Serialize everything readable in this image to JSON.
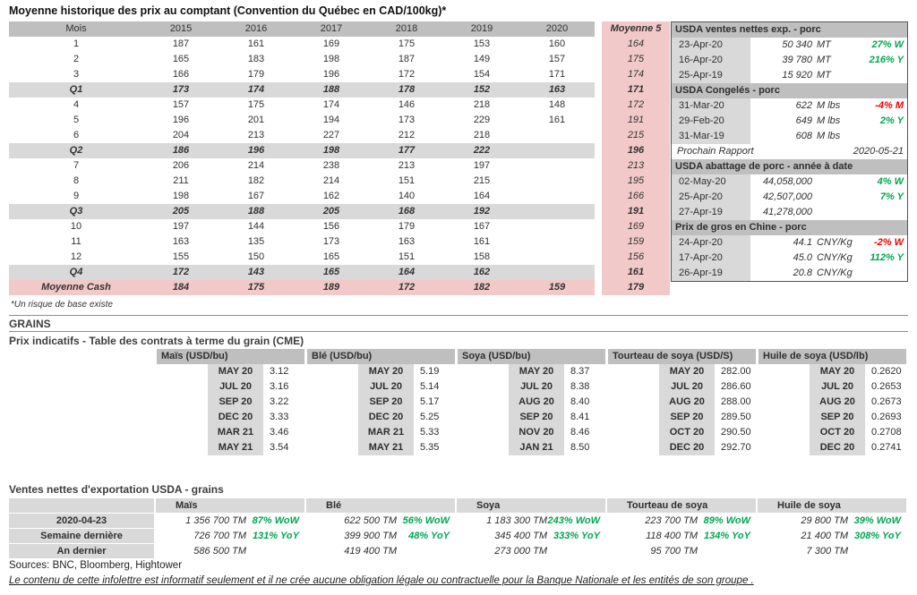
{
  "page": {
    "title": "Moyenne historique des prix au comptant (Convention du Québec en CAD/100kg)*",
    "footnote": "*Un risque de base existe",
    "sources": "Sources: BNC, Bloomberg, Hightower",
    "disclaimer": "Le contenu de cette infolettre est informatif seulement et il ne crée aucune obligation légale ou contractuelle pour la Banque Nationale et les entités de son groupe ."
  },
  "colors": {
    "header_gray": "#bfbfbf",
    "light_gray": "#d9d9d9",
    "pink": "#f2c9c9",
    "green": "#00a651",
    "red": "#ee0000"
  },
  "price_table": {
    "headers": [
      "Mois",
      "2015",
      "2016",
      "2017",
      "2018",
      "2019",
      "2020",
      "Moyenne 5"
    ],
    "rows": [
      {
        "label": "1",
        "type": "normal",
        "values": [
          "187",
          "161",
          "169",
          "175",
          "153",
          "160"
        ],
        "moyenne": "164"
      },
      {
        "label": "2",
        "type": "normal",
        "values": [
          "165",
          "183",
          "198",
          "187",
          "149",
          "157"
        ],
        "moyenne": "175"
      },
      {
        "label": "3",
        "type": "normal",
        "values": [
          "166",
          "179",
          "196",
          "172",
          "154",
          "171"
        ],
        "moyenne": "174"
      },
      {
        "label": "Q1",
        "type": "quarter",
        "values": [
          "173",
          "174",
          "188",
          "178",
          "152",
          "163"
        ],
        "moyenne": "171"
      },
      {
        "label": "4",
        "type": "normal",
        "values": [
          "157",
          "175",
          "174",
          "146",
          "218",
          "148"
        ],
        "moyenne": "172"
      },
      {
        "label": "5",
        "type": "normal",
        "values": [
          "196",
          "201",
          "194",
          "173",
          "229",
          "161"
        ],
        "moyenne": "191"
      },
      {
        "label": "6",
        "type": "normal",
        "values": [
          "204",
          "213",
          "227",
          "212",
          "218",
          ""
        ],
        "moyenne": "215"
      },
      {
        "label": "Q2",
        "type": "quarter",
        "values": [
          "186",
          "196",
          "198",
          "177",
          "222",
          ""
        ],
        "moyenne": "196"
      },
      {
        "label": "7",
        "type": "normal",
        "values": [
          "206",
          "214",
          "238",
          "213",
          "197",
          ""
        ],
        "moyenne": "213"
      },
      {
        "label": "8",
        "type": "normal",
        "values": [
          "211",
          "182",
          "214",
          "151",
          "215",
          ""
        ],
        "moyenne": "195"
      },
      {
        "label": "9",
        "type": "normal",
        "values": [
          "198",
          "167",
          "162",
          "140",
          "164",
          ""
        ],
        "moyenne": "166"
      },
      {
        "label": "Q3",
        "type": "quarter",
        "values": [
          "205",
          "188",
          "205",
          "168",
          "192",
          ""
        ],
        "moyenne": "191"
      },
      {
        "label": "10",
        "type": "normal",
        "values": [
          "197",
          "144",
          "156",
          "179",
          "167",
          ""
        ],
        "moyenne": "169"
      },
      {
        "label": "11",
        "type": "normal",
        "values": [
          "163",
          "135",
          "173",
          "163",
          "161",
          ""
        ],
        "moyenne": "159"
      },
      {
        "label": "12",
        "type": "normal",
        "values": [
          "155",
          "150",
          "165",
          "151",
          "158",
          ""
        ],
        "moyenne": "156"
      },
      {
        "label": "Q4",
        "type": "quarter",
        "values": [
          "172",
          "143",
          "165",
          "164",
          "162",
          ""
        ],
        "moyenne": "161"
      },
      {
        "label": "Moyenne Cash",
        "type": "cash",
        "values": [
          "184",
          "175",
          "189",
          "172",
          "182",
          "159"
        ],
        "moyenne": "179"
      }
    ]
  },
  "usda_panel": {
    "blocks": [
      {
        "type": "header",
        "text": "USDA ventes nettes exp. - porc"
      },
      {
        "type": "row",
        "date": "23-Apr-20",
        "value": "50 340",
        "unit": "MT",
        "change": "27% W",
        "trend": "up"
      },
      {
        "type": "row",
        "date": "16-Apr-20",
        "value": "39 780",
        "unit": "MT",
        "change": "216% Y",
        "trend": "up"
      },
      {
        "type": "row",
        "date": "25-Apr-19",
        "value": "15 920",
        "unit": "MT",
        "change": "",
        "trend": ""
      },
      {
        "type": "header",
        "text": "USDA Congelés - porc"
      },
      {
        "type": "row",
        "date": "31-Mar-20",
        "value": "622",
        "unit": "M lbs",
        "change": "-4% M",
        "trend": "down"
      },
      {
        "type": "row",
        "date": "29-Feb-20",
        "value": "649",
        "unit": "M lbs",
        "change": "2% Y",
        "trend": "up"
      },
      {
        "type": "row",
        "date": "31-Mar-19",
        "value": "608",
        "unit": "M lbs",
        "change": "",
        "trend": ""
      },
      {
        "type": "note",
        "label": "Prochain Rapport",
        "value": "2020-05-21"
      },
      {
        "type": "header",
        "text": "USDA abattage de porc - année à date"
      },
      {
        "type": "row",
        "date": "02-May-20",
        "value": "44,058,000",
        "unit": "",
        "change": "4% W",
        "trend": "up"
      },
      {
        "type": "row",
        "date": "25-Apr-20",
        "value": "42,507,000",
        "unit": "",
        "change": "7% Y",
        "trend": "up"
      },
      {
        "type": "row",
        "date": "27-Apr-19",
        "value": "41,278,000",
        "unit": "",
        "change": "",
        "trend": ""
      },
      {
        "type": "header",
        "text": "Prix de gros en Chine - porc"
      },
      {
        "type": "row",
        "date": "24-Apr-20",
        "value": "44.1",
        "unit": "CNY/Kg",
        "change": "-2% W",
        "trend": "down"
      },
      {
        "type": "row",
        "date": "17-Apr-20",
        "value": "45.0",
        "unit": "CNY/Kg",
        "change": "112% Y",
        "trend": "up"
      },
      {
        "type": "row",
        "date": "26-Apr-19",
        "value": "20.8",
        "unit": "CNY/Kg",
        "change": "",
        "trend": ""
      }
    ]
  },
  "grains": {
    "heading": "GRAINS",
    "subheading": "Prix indicatifs - Table des contrats à terme du grain (CME)",
    "futures": [
      {
        "title": "Maïs (USD/bu)",
        "rows": [
          [
            "MAY 20",
            "3.12"
          ],
          [
            "JUL 20",
            "3.16"
          ],
          [
            "SEP 20",
            "3.22"
          ],
          [
            "DEC 20",
            "3.33"
          ],
          [
            "MAR 21",
            "3.46"
          ],
          [
            "MAY 21",
            "3.54"
          ]
        ]
      },
      {
        "title": "Blé (USD/bu)",
        "rows": [
          [
            "MAY 20",
            "5.19"
          ],
          [
            "JUL 20",
            "5.14"
          ],
          [
            "SEP 20",
            "5.17"
          ],
          [
            "DEC 20",
            "5.25"
          ],
          [
            "MAR 21",
            "5.33"
          ],
          [
            "MAY 21",
            "5.35"
          ]
        ]
      },
      {
        "title": "Soya (USD/bu)",
        "rows": [
          [
            "MAY 20",
            "8.37"
          ],
          [
            "JUL 20",
            "8.38"
          ],
          [
            "AUG 20",
            "8.40"
          ],
          [
            "SEP 20",
            "8.41"
          ],
          [
            "NOV 20",
            "8.46"
          ],
          [
            "JAN 21",
            "8.50"
          ]
        ]
      },
      {
        "title": "Tourteau de soya (USD/S)",
        "rows": [
          [
            "MAY 20",
            "282.00"
          ],
          [
            "JUL 20",
            "286.60"
          ],
          [
            "AUG 20",
            "288.00"
          ],
          [
            "SEP 20",
            "289.50"
          ],
          [
            "OCT 20",
            "290.50"
          ],
          [
            "DEC 20",
            "292.70"
          ]
        ]
      },
      {
        "title": "Huile de soya (USD/lb)",
        "rows": [
          [
            "MAY 20",
            "0.2620"
          ],
          [
            "JUL 20",
            "0.2653"
          ],
          [
            "AUG 20",
            "0.2673"
          ],
          [
            "SEP 20",
            "0.2693"
          ],
          [
            "OCT 20",
            "0.2708"
          ],
          [
            "DEC 20",
            "0.2741"
          ]
        ]
      }
    ]
  },
  "exports": {
    "title": "Ventes nettes d'exportation USDA - grains",
    "col_headers": [
      "Maïs",
      "Blé",
      "Soya",
      "Tourteau de soya",
      "Huile de soya"
    ],
    "rows": [
      {
        "label": "2020-04-23",
        "cells": [
          {
            "value": "1 356 700 TM",
            "change": "87% WoW",
            "trend": "up"
          },
          {
            "value": "622 500 TM",
            "change": "56% WoW",
            "trend": "up"
          },
          {
            "value": "1 183 300 TM",
            "change": "243% WoW",
            "trend": "up"
          },
          {
            "value": "223 700 TM",
            "change": "89% WoW",
            "trend": "up"
          },
          {
            "value": "29 800 TM",
            "change": "39% WoW",
            "trend": "up"
          }
        ]
      },
      {
        "label": "Semaine dernière",
        "cells": [
          {
            "value": "726 700 TM",
            "change": "131% YoY",
            "trend": "up"
          },
          {
            "value": "399 900 TM",
            "change": "48% YoY",
            "trend": "up"
          },
          {
            "value": "345 400 TM",
            "change": "333% YoY",
            "trend": "up"
          },
          {
            "value": "118 400 TM",
            "change": "134% YoY",
            "trend": "up"
          },
          {
            "value": "21 400 TM",
            "change": "308% YoY",
            "trend": "up"
          }
        ]
      },
      {
        "label": "An dernier",
        "cells": [
          {
            "value": "586 500 TM",
            "change": "",
            "trend": ""
          },
          {
            "value": "419 400 TM",
            "change": "",
            "trend": ""
          },
          {
            "value": "273 000 TM",
            "change": "",
            "trend": ""
          },
          {
            "value": "95 700 TM",
            "change": "",
            "trend": ""
          },
          {
            "value": "7 300 TM",
            "change": "",
            "trend": ""
          }
        ]
      }
    ]
  }
}
